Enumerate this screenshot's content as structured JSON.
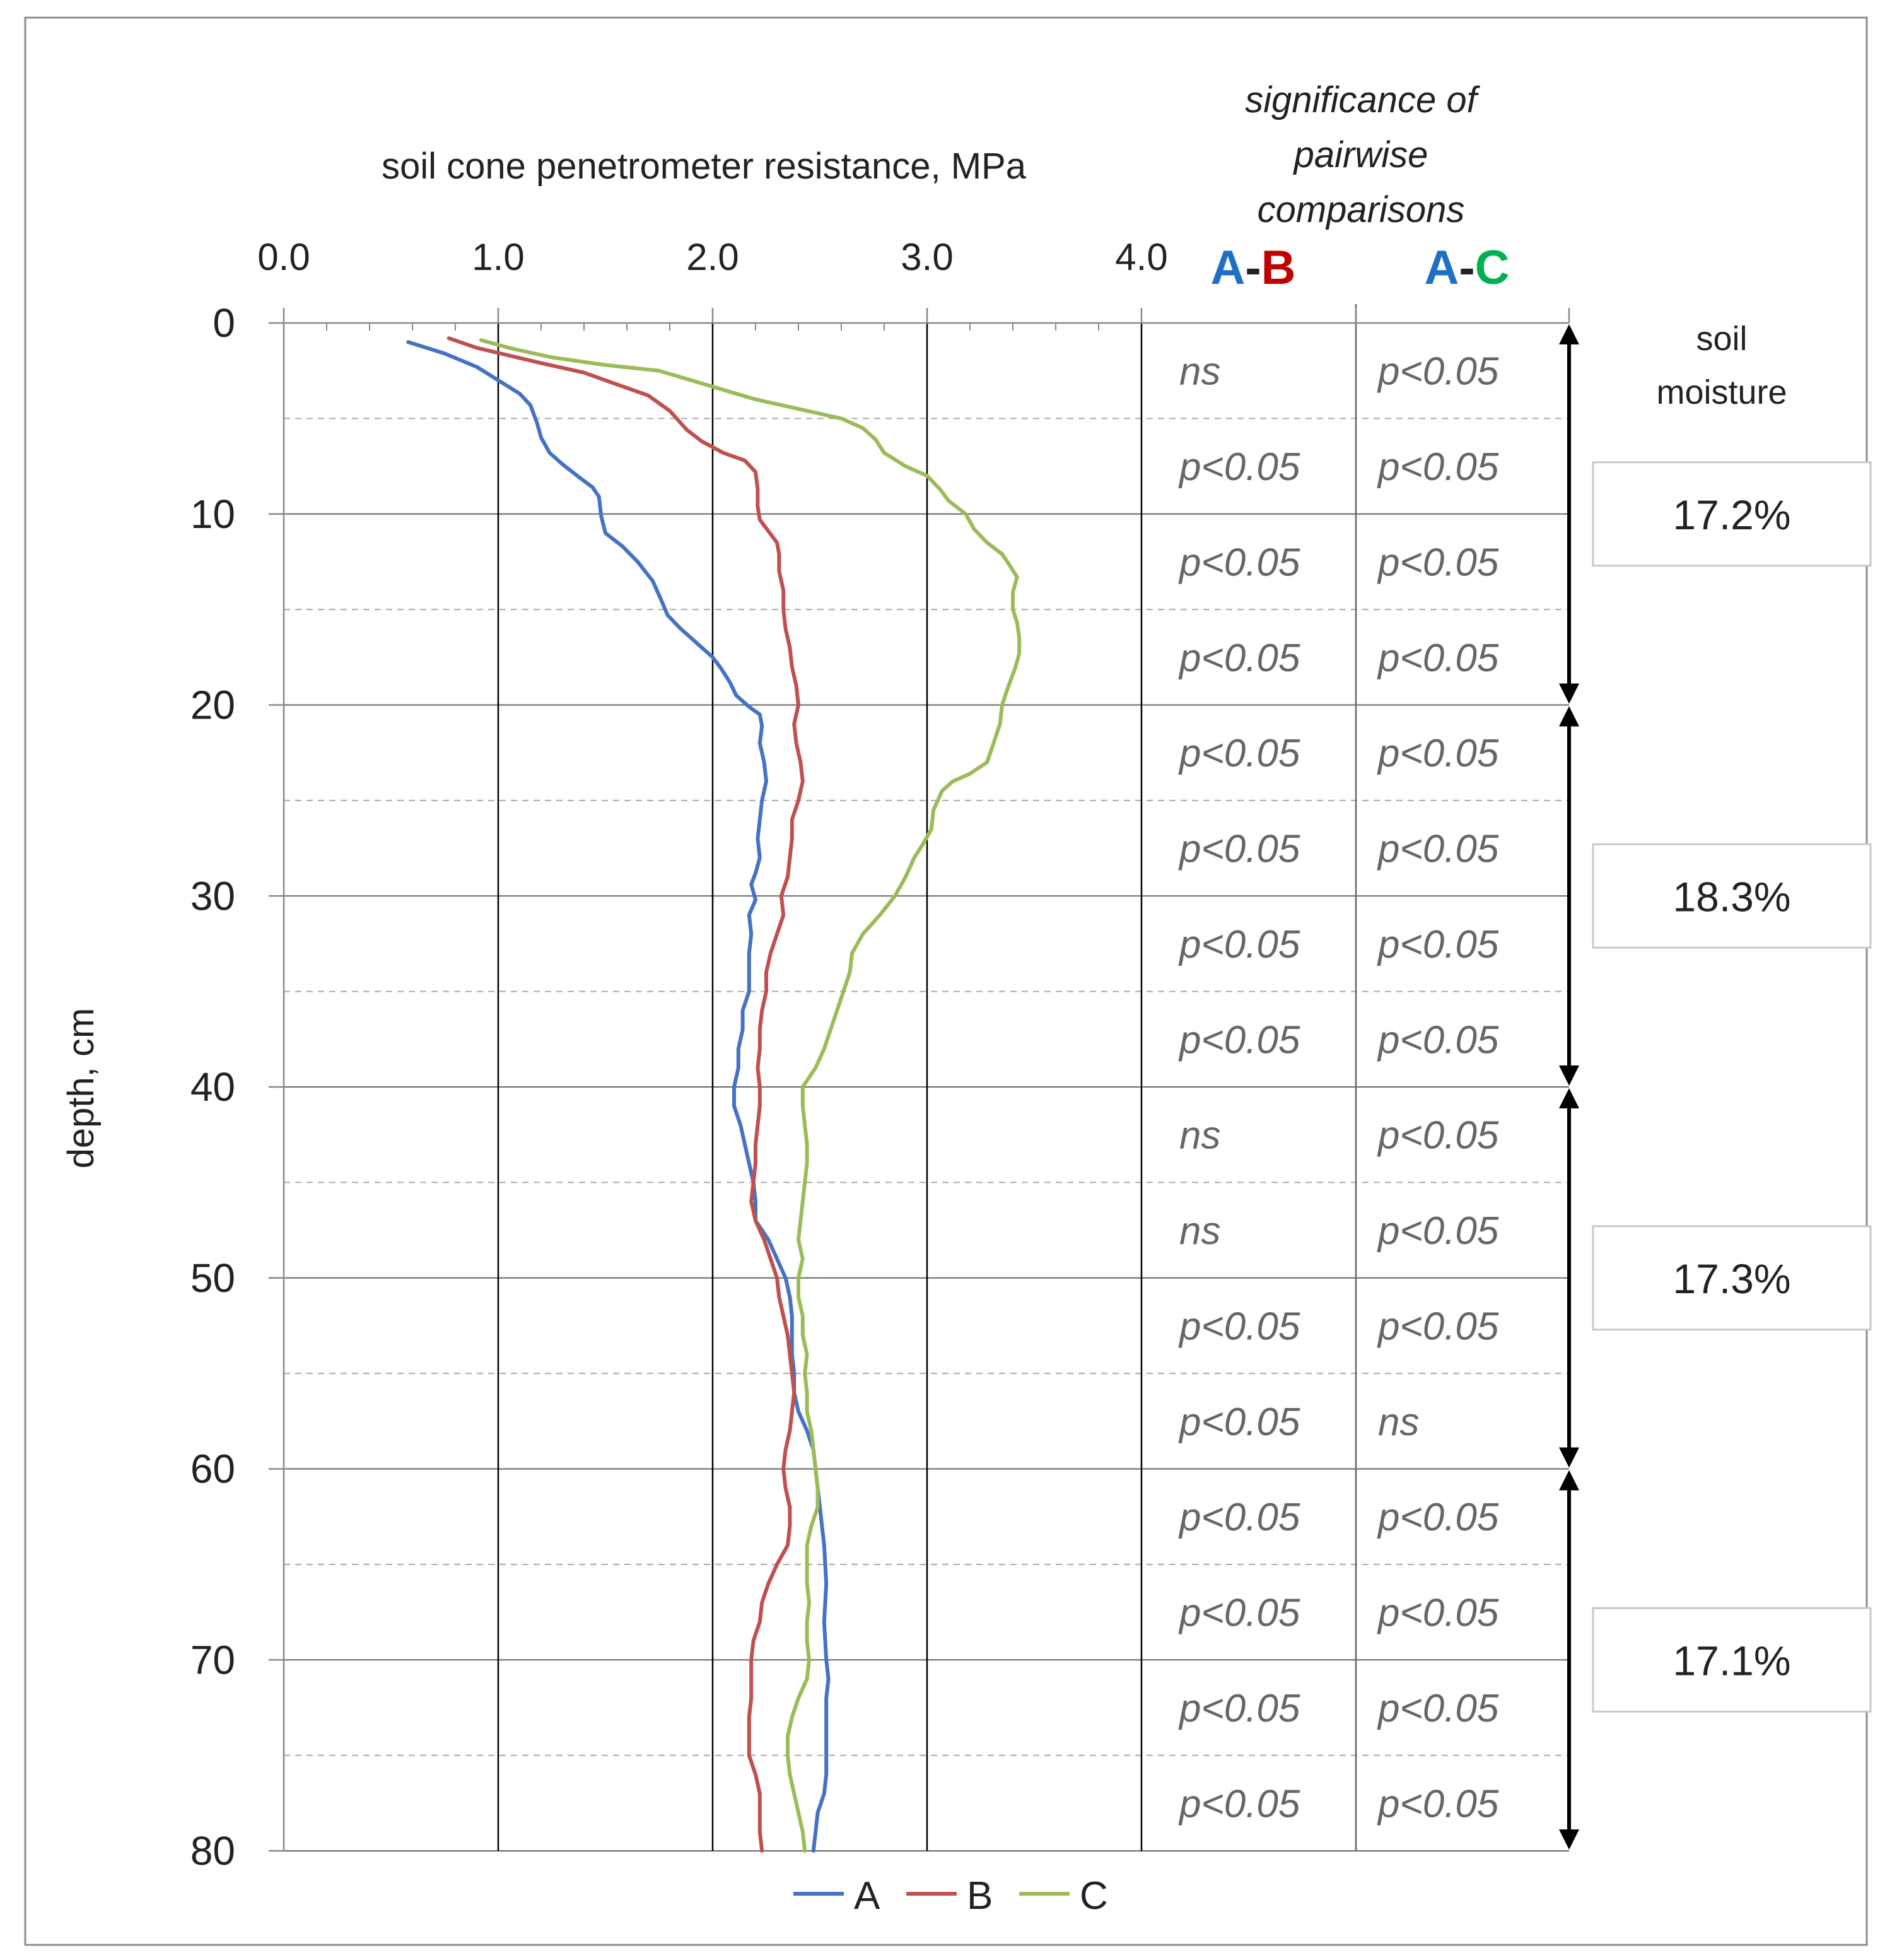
{
  "chart_data": {
    "type": "line",
    "title": "soil cone penetrometer resistance, MPa",
    "xlabel": "soil cone penetrometer resistance, MPa",
    "ylabel": "depth, cm",
    "xlim": [
      0,
      4
    ],
    "ylim": [
      0,
      80
    ],
    "y_inverted": true,
    "x_tick_labels": [
      "0.0",
      "1.0",
      "2.0",
      "3.0",
      "4.0"
    ],
    "y_tick_labels": [
      "0",
      "10",
      "20",
      "30",
      "40",
      "50",
      "60",
      "70",
      "80"
    ],
    "legend_position": "bottom",
    "grid": "vertical lines every 1.0 MPa; solid horizontal lines every 10 cm; dashed lines at 5 cm intermediates in the table area",
    "series": [
      {
        "name": "A",
        "color": "#4472C4",
        "points": [
          [
            0.58,
            1
          ],
          [
            0.75,
            1.6
          ],
          [
            0.9,
            2.3
          ],
          [
            1.0,
            3.0
          ],
          [
            1.1,
            3.7
          ],
          [
            1.15,
            4.3
          ],
          [
            1.18,
            5.2
          ],
          [
            1.2,
            6.0
          ],
          [
            1.24,
            6.8
          ],
          [
            1.3,
            7.4
          ],
          [
            1.38,
            8.1
          ],
          [
            1.44,
            8.6
          ],
          [
            1.47,
            9.1
          ],
          [
            1.48,
            10.1
          ],
          [
            1.5,
            11.0
          ],
          [
            1.58,
            11.7
          ],
          [
            1.65,
            12.5
          ],
          [
            1.72,
            13.5
          ],
          [
            1.76,
            14.5
          ],
          [
            1.79,
            15.3
          ],
          [
            1.85,
            16.0
          ],
          [
            1.93,
            16.8
          ],
          [
            2.0,
            17.5
          ],
          [
            2.04,
            18.1
          ],
          [
            2.08,
            18.8
          ],
          [
            2.11,
            19.5
          ],
          [
            2.17,
            20.1
          ],
          [
            2.22,
            20.5
          ],
          [
            2.23,
            21.1
          ],
          [
            2.22,
            22.0
          ],
          [
            2.24,
            23.0
          ],
          [
            2.25,
            24.0
          ],
          [
            2.23,
            25.0
          ],
          [
            2.22,
            26.0
          ],
          [
            2.21,
            27.0
          ],
          [
            2.22,
            28.0
          ],
          [
            2.2,
            28.8
          ],
          [
            2.18,
            29.4
          ],
          [
            2.2,
            30.2
          ],
          [
            2.17,
            31.0
          ],
          [
            2.18,
            32.0
          ],
          [
            2.17,
            33.0
          ],
          [
            2.17,
            34.0
          ],
          [
            2.17,
            35.0
          ],
          [
            2.14,
            36.0
          ],
          [
            2.14,
            37.0
          ],
          [
            2.12,
            38.0
          ],
          [
            2.12,
            39.0
          ],
          [
            2.1,
            40.0
          ],
          [
            2.1,
            41.0
          ],
          [
            2.13,
            42.0
          ],
          [
            2.15,
            43.0
          ],
          [
            2.17,
            44.0
          ],
          [
            2.19,
            45.0
          ],
          [
            2.2,
            46.0
          ],
          [
            2.2,
            47.0
          ],
          [
            2.26,
            48.0
          ],
          [
            2.3,
            49.0
          ],
          [
            2.34,
            50.0
          ],
          [
            2.36,
            51.0
          ],
          [
            2.37,
            52.0
          ],
          [
            2.37,
            53.0
          ],
          [
            2.37,
            54.0
          ],
          [
            2.38,
            55.0
          ],
          [
            2.38,
            56.0
          ],
          [
            2.4,
            57.0
          ],
          [
            2.44,
            58.0
          ],
          [
            2.47,
            59.0
          ],
          [
            2.48,
            60.0
          ],
          [
            2.5,
            62.0
          ],
          [
            2.52,
            64.0
          ],
          [
            2.53,
            66.0
          ],
          [
            2.52,
            68.0
          ],
          [
            2.53,
            70.0
          ],
          [
            2.54,
            71.0
          ],
          [
            2.53,
            72.0
          ],
          [
            2.53,
            74.0
          ],
          [
            2.53,
            76.0
          ],
          [
            2.52,
            77.0
          ],
          [
            2.49,
            78.0
          ],
          [
            2.48,
            79.0
          ],
          [
            2.47,
            80.0
          ]
        ]
      },
      {
        "name": "B",
        "color": "#C0504D",
        "points": [
          [
            0.77,
            0.8
          ],
          [
            0.9,
            1.3
          ],
          [
            1.05,
            1.7
          ],
          [
            1.2,
            2.1
          ],
          [
            1.4,
            2.6
          ],
          [
            1.55,
            3.2
          ],
          [
            1.7,
            3.8
          ],
          [
            1.8,
            4.6
          ],
          [
            1.88,
            5.6
          ],
          [
            1.95,
            6.2
          ],
          [
            2.05,
            6.8
          ],
          [
            2.15,
            7.2
          ],
          [
            2.2,
            7.8
          ],
          [
            2.21,
            8.7
          ],
          [
            2.21,
            9.6
          ],
          [
            2.22,
            10.3
          ],
          [
            2.26,
            10.9
          ],
          [
            2.3,
            11.5
          ],
          [
            2.31,
            12.1
          ],
          [
            2.31,
            13.0
          ],
          [
            2.33,
            14.0
          ],
          [
            2.33,
            15.0
          ],
          [
            2.34,
            16.0
          ],
          [
            2.36,
            17.0
          ],
          [
            2.37,
            18.0
          ],
          [
            2.39,
            19.0
          ],
          [
            2.4,
            20.0
          ],
          [
            2.38,
            21.0
          ],
          [
            2.39,
            22.0
          ],
          [
            2.41,
            23.0
          ],
          [
            2.42,
            24.0
          ],
          [
            2.4,
            25.0
          ],
          [
            2.37,
            26.0
          ],
          [
            2.37,
            27.0
          ],
          [
            2.36,
            28.0
          ],
          [
            2.35,
            29.0
          ],
          [
            2.32,
            30.0
          ],
          [
            2.33,
            31.0
          ],
          [
            2.3,
            32.0
          ],
          [
            2.27,
            33.0
          ],
          [
            2.25,
            34.0
          ],
          [
            2.25,
            35.0
          ],
          [
            2.23,
            36.0
          ],
          [
            2.22,
            37.0
          ],
          [
            2.22,
            38.0
          ],
          [
            2.21,
            39.0
          ],
          [
            2.22,
            40.0
          ],
          [
            2.22,
            41.0
          ],
          [
            2.21,
            42.0
          ],
          [
            2.2,
            43.0
          ],
          [
            2.2,
            44.0
          ],
          [
            2.19,
            45.0
          ],
          [
            2.18,
            46.0
          ],
          [
            2.2,
            47.0
          ],
          [
            2.24,
            48.0
          ],
          [
            2.27,
            49.0
          ],
          [
            2.3,
            50.0
          ],
          [
            2.31,
            51.0
          ],
          [
            2.33,
            52.0
          ],
          [
            2.35,
            53.0
          ],
          [
            2.36,
            54.0
          ],
          [
            2.37,
            55.0
          ],
          [
            2.38,
            56.0
          ],
          [
            2.37,
            57.0
          ],
          [
            2.36,
            58.0
          ],
          [
            2.34,
            59.0
          ],
          [
            2.33,
            60.0
          ],
          [
            2.34,
            61.0
          ],
          [
            2.36,
            62.0
          ],
          [
            2.36,
            63.0
          ],
          [
            2.35,
            64.0
          ],
          [
            2.3,
            65.0
          ],
          [
            2.26,
            66.0
          ],
          [
            2.23,
            67.0
          ],
          [
            2.22,
            68.0
          ],
          [
            2.19,
            69.0
          ],
          [
            2.18,
            70.0
          ],
          [
            2.18,
            71.0
          ],
          [
            2.18,
            72.0
          ],
          [
            2.17,
            73.0
          ],
          [
            2.17,
            74.0
          ],
          [
            2.17,
            75.0
          ],
          [
            2.2,
            76.0
          ],
          [
            2.22,
            77.0
          ],
          [
            2.22,
            78.0
          ],
          [
            2.22,
            79.0
          ],
          [
            2.23,
            80.0
          ]
        ]
      },
      {
        "name": "C",
        "color": "#9BBB59",
        "points": [
          [
            0.92,
            0.9
          ],
          [
            1.05,
            1.3
          ],
          [
            1.25,
            1.8
          ],
          [
            1.5,
            2.2
          ],
          [
            1.75,
            2.5
          ],
          [
            1.9,
            3.0
          ],
          [
            2.05,
            3.5
          ],
          [
            2.2,
            4.0
          ],
          [
            2.4,
            4.5
          ],
          [
            2.6,
            5.0
          ],
          [
            2.7,
            5.5
          ],
          [
            2.76,
            6.1
          ],
          [
            2.8,
            6.8
          ],
          [
            2.9,
            7.5
          ],
          [
            3.0,
            8.0
          ],
          [
            3.06,
            8.7
          ],
          [
            3.1,
            9.3
          ],
          [
            3.18,
            10.0
          ],
          [
            3.22,
            10.8
          ],
          [
            3.28,
            11.5
          ],
          [
            3.35,
            12.1
          ],
          [
            3.38,
            12.6
          ],
          [
            3.42,
            13.3
          ],
          [
            3.4,
            14.1
          ],
          [
            3.4,
            15.0
          ],
          [
            3.42,
            15.7
          ],
          [
            3.43,
            16.5
          ],
          [
            3.43,
            17.3
          ],
          [
            3.41,
            18.1
          ],
          [
            3.38,
            19.0
          ],
          [
            3.35,
            20.0
          ],
          [
            3.34,
            21.0
          ],
          [
            3.31,
            22.0
          ],
          [
            3.28,
            23.0
          ],
          [
            3.2,
            23.6
          ],
          [
            3.12,
            24.0
          ],
          [
            3.07,
            24.5
          ],
          [
            3.03,
            25.5
          ],
          [
            3.02,
            26.5
          ],
          [
            2.98,
            27.3
          ],
          [
            2.94,
            28.0
          ],
          [
            2.9,
            29.0
          ],
          [
            2.85,
            30.0
          ],
          [
            2.78,
            31.0
          ],
          [
            2.7,
            32.0
          ],
          [
            2.65,
            33.0
          ],
          [
            2.64,
            34.0
          ],
          [
            2.61,
            35.0
          ],
          [
            2.58,
            36.0
          ],
          [
            2.55,
            37.0
          ],
          [
            2.52,
            38.0
          ],
          [
            2.48,
            39.0
          ],
          [
            2.42,
            40.0
          ],
          [
            2.42,
            41.0
          ],
          [
            2.43,
            42.0
          ],
          [
            2.44,
            43.0
          ],
          [
            2.44,
            44.0
          ],
          [
            2.43,
            45.0
          ],
          [
            2.42,
            46.0
          ],
          [
            2.41,
            47.0
          ],
          [
            2.4,
            48.0
          ],
          [
            2.42,
            49.0
          ],
          [
            2.4,
            50.0
          ],
          [
            2.4,
            51.0
          ],
          [
            2.42,
            52.0
          ],
          [
            2.42,
            53.0
          ],
          [
            2.44,
            54.0
          ],
          [
            2.43,
            55.0
          ],
          [
            2.44,
            56.0
          ],
          [
            2.44,
            57.0
          ],
          [
            2.46,
            58.0
          ],
          [
            2.47,
            59.0
          ],
          [
            2.48,
            60.0
          ],
          [
            2.49,
            61.0
          ],
          [
            2.49,
            62.0
          ],
          [
            2.46,
            63.0
          ],
          [
            2.44,
            64.0
          ],
          [
            2.44,
            65.0
          ],
          [
            2.44,
            66.0
          ],
          [
            2.45,
            67.0
          ],
          [
            2.44,
            68.0
          ],
          [
            2.44,
            69.0
          ],
          [
            2.45,
            70.0
          ],
          [
            2.44,
            71.0
          ],
          [
            2.4,
            72.0
          ],
          [
            2.37,
            73.0
          ],
          [
            2.35,
            74.0
          ],
          [
            2.35,
            75.0
          ],
          [
            2.36,
            76.0
          ],
          [
            2.38,
            77.0
          ],
          [
            2.4,
            78.0
          ],
          [
            2.42,
            79.0
          ],
          [
            2.43,
            80.0
          ]
        ]
      }
    ],
    "significance": {
      "title_lines": [
        "significance of",
        "pairwise",
        "comparisons"
      ],
      "columns": [
        {
          "first": "A",
          "dash": "-",
          "second": "B",
          "first_color": "#1F6FC5",
          "second_color": "#C00000"
        },
        {
          "first": "A",
          "dash": "-",
          "second": "C",
          "first_color": "#1F6FC5",
          "second_color": "#00B050"
        }
      ],
      "intervals": [
        "0-5",
        "5-10",
        "10-15",
        "15-20",
        "20-25",
        "25-30",
        "30-35",
        "35-40",
        "40-45",
        "45-50",
        "50-55",
        "55-60",
        "60-65",
        "65-70",
        "70-75",
        "75-80"
      ],
      "ab": [
        "ns",
        "p<0.05",
        "p<0.05",
        "p<0.05",
        "p<0.05",
        "p<0.05",
        "p<0.05",
        "p<0.05",
        "ns",
        "ns",
        "p<0.05",
        "p<0.05",
        "p<0.05",
        "p<0.05",
        "p<0.05",
        "p<0.05"
      ],
      "ac": [
        "p<0.05",
        "p<0.05",
        "p<0.05",
        "p<0.05",
        "p<0.05",
        "p<0.05",
        "p<0.05",
        "p<0.05",
        "p<0.05",
        "p<0.05",
        "p<0.05",
        "ns",
        "p<0.05",
        "p<0.05",
        "p<0.05",
        "p<0.05"
      ]
    },
    "soil_moisture": {
      "label_lines": [
        "soil",
        "moisture"
      ],
      "layers": [
        {
          "range": [
            0,
            20
          ],
          "value": "17.2%"
        },
        {
          "range": [
            20,
            40
          ],
          "value": "18.3%"
        },
        {
          "range": [
            40,
            60
          ],
          "value": "17.3%"
        },
        {
          "range": [
            60,
            80
          ],
          "value": "17.1%"
        }
      ]
    }
  }
}
